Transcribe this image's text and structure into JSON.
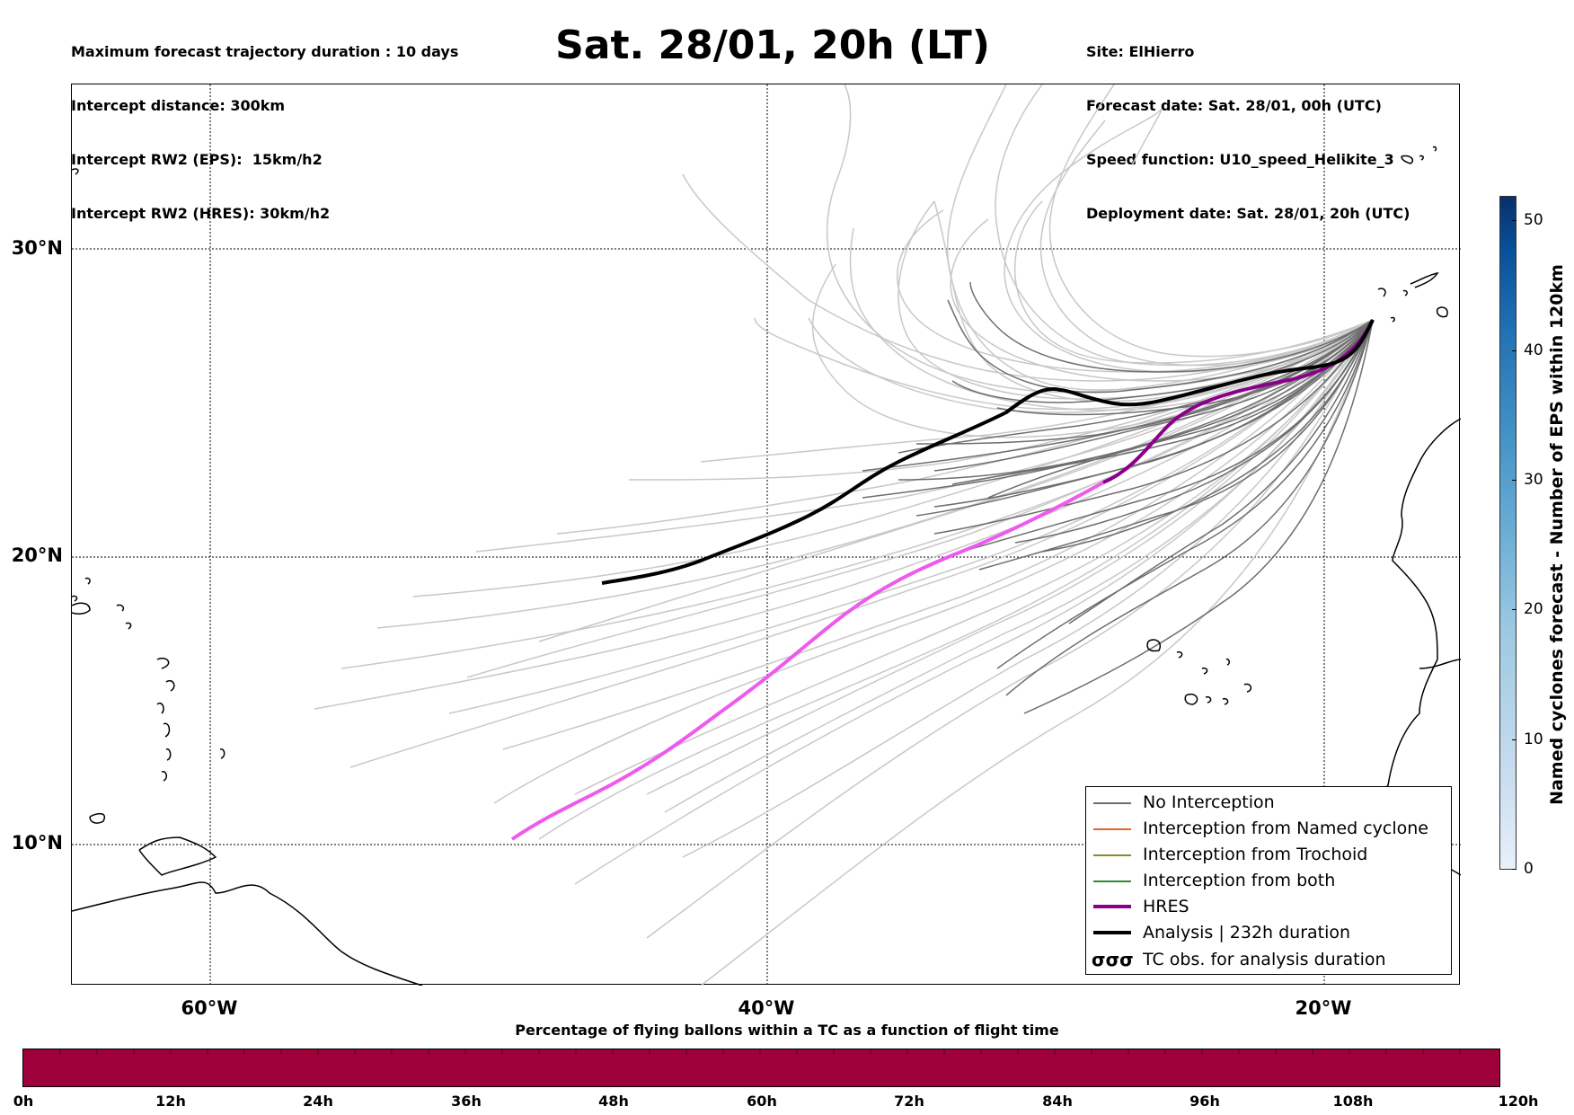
{
  "header_left": [
    "Maximum forecast trajectory duration : 10 days",
    "Intercept distance: 300km",
    "Intercept RW2 (EPS):  15km/h2",
    "Intercept RW2 (HRES): 30km/h2"
  ],
  "header_right": [
    "Site: ElHierro",
    "Forecast date: Sat. 28/01, 00h (UTC)",
    "Speed function: U10_speed_Helikite_3",
    "Deployment date: Sat. 28/01, 20h (UTC)"
  ],
  "title": "Sat. 28/01, 20h (LT)",
  "map": {
    "lat_labels": [
      "30°N",
      "20°N",
      "10°N"
    ],
    "lon_labels": [
      "60°W",
      "40°W",
      "20°W"
    ],
    "colors": {
      "no_interception": "#6e6e6e",
      "faded_track": "#c8c8c8",
      "hres_early": "#8b008b",
      "hres_late": "#ee5aee",
      "analysis": "#000000"
    }
  },
  "legend": [
    {
      "label": "No Interception",
      "color": "#6e6e6e"
    },
    {
      "label": "Interception from Named cyclone",
      "color": "#e8632a"
    },
    {
      "label": "Interception from Trochoid",
      "color": "#8a8a2a"
    },
    {
      "label": "Interception from both",
      "color": "#2e8b2e"
    },
    {
      "label": "HRES",
      "color": "#8b008b"
    },
    {
      "label": "Analysis | 232h duration",
      "color": "#000000"
    },
    {
      "label": "TC obs. for analysis duration",
      "icon": "tc-symbol-icon",
      "symbol": "σσσ"
    }
  ],
  "colorbar": {
    "label": "Named cyclones forecast - Number of EPS within 120km",
    "ticks": [
      "0",
      "10",
      "20",
      "30",
      "40",
      "50"
    ]
  },
  "percentage_bar": {
    "title": "Percentage of flying ballons within a TC as a function of flight time",
    "color": "#9e003a",
    "ticks": [
      "0h",
      "12h",
      "24h",
      "36h",
      "48h",
      "60h",
      "72h",
      "84h",
      "96h",
      "108h",
      "120h"
    ]
  }
}
